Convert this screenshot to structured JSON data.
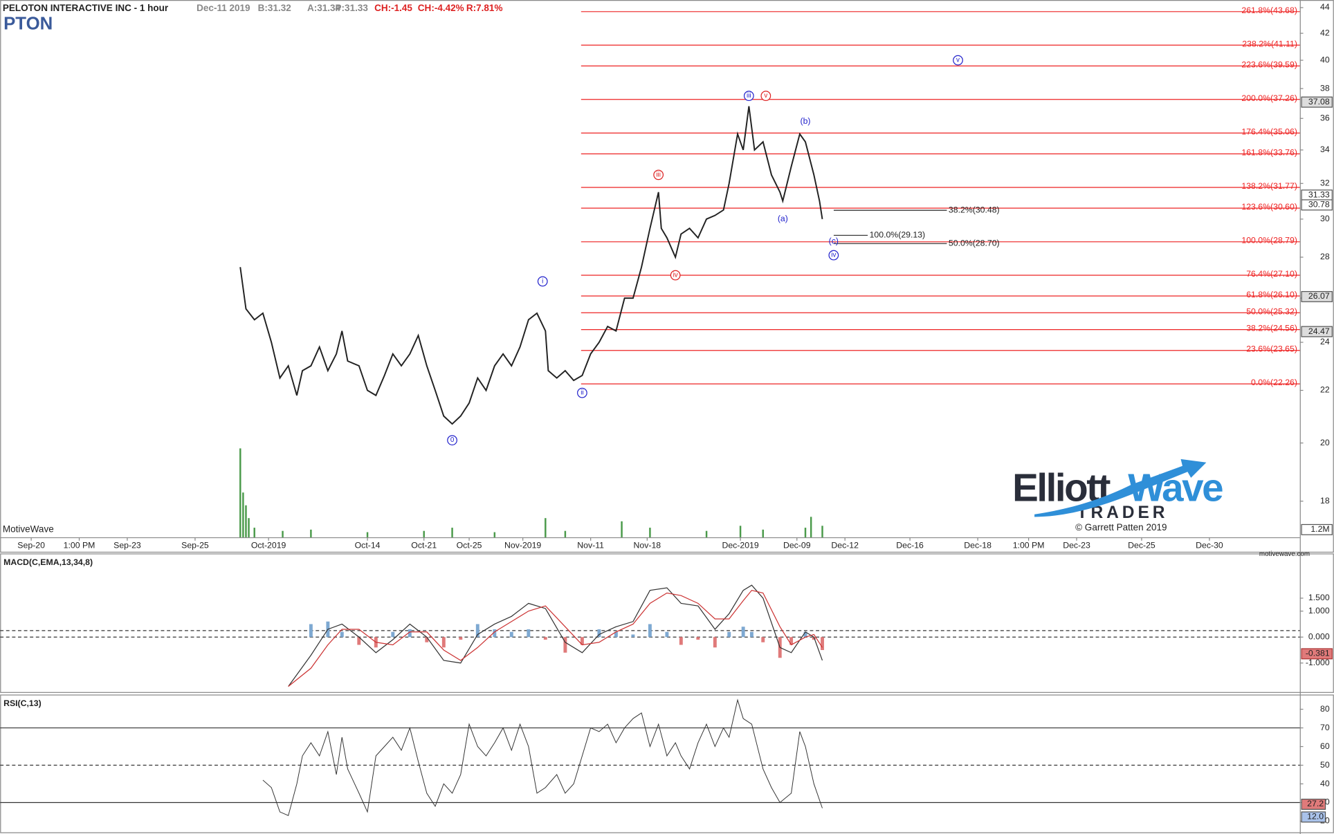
{
  "chart_data": [
    {
      "type": "ohlc-line",
      "title": "PELOTON INTERACTIVE INC - 1 hour",
      "symbol": "PTON",
      "quote": [
        "Dec-11 2019",
        "B:31.32",
        "A:31.34",
        "P:31.33",
        "CH:-1.45",
        "CH:-4.42%",
        "R:7.81%"
      ],
      "log": true,
      "xlim": [
        0,
        460
      ],
      "ylim": [
        16.86,
        44.61
      ],
      "yticks": [
        18,
        20,
        22,
        24,
        26,
        28,
        30,
        32,
        34,
        36,
        38,
        40,
        42,
        44
      ],
      "xticks": [
        {
          "value": 11,
          "label": "Sep-20"
        },
        {
          "value": 28,
          "label": "1:00 PM"
        },
        {
          "value": 45,
          "label": "Sep-23"
        },
        {
          "value": 69,
          "label": "Sep-25"
        },
        {
          "value": 95,
          "label": "Oct-2019"
        },
        {
          "value": 130,
          "label": "Oct-14"
        },
        {
          "value": 150,
          "label": "Oct-21"
        },
        {
          "value": 166,
          "label": "Oct-25"
        },
        {
          "value": 185,
          "label": "Nov-2019"
        },
        {
          "value": 209,
          "label": "Nov-11"
        },
        {
          "value": 229,
          "label": "Nov-18"
        },
        {
          "value": 262,
          "label": "Dec-2019"
        },
        {
          "value": 282,
          "label": "Dec-09"
        },
        {
          "value": 299,
          "label": "Dec-12"
        },
        {
          "value": 322,
          "label": "Dec-16"
        },
        {
          "value": 346,
          "label": "Dec-18"
        },
        {
          "value": 364,
          "label": "1:00 PM"
        },
        {
          "value": 381,
          "label": "Dec-23"
        },
        {
          "value": 404,
          "label": "Dec-25"
        },
        {
          "value": 428,
          "label": "Dec-30"
        }
      ],
      "color": "#222222",
      "x": [
        85,
        87,
        90,
        93,
        96,
        99,
        102,
        105,
        107,
        110,
        113,
        116,
        119,
        121,
        123,
        127,
        130,
        133,
        136,
        139,
        142,
        145,
        148,
        151,
        154,
        157,
        160,
        163,
        166,
        169,
        172,
        175,
        178,
        181,
        184,
        187,
        190,
        193,
        194,
        197,
        200,
        203,
        206,
        209,
        212,
        215,
        218,
        221,
        224,
        227,
        230,
        233,
        234,
        236,
        239,
        241,
        244,
        247,
        250,
        253,
        256,
        258,
        261,
        263,
        265,
        267,
        270,
        273,
        276,
        277,
        280,
        283,
        285,
        288,
        290,
        291
      ],
      "values": [
        27.5,
        25.5,
        25.0,
        25.3,
        24.0,
        22.5,
        23.0,
        21.8,
        22.8,
        23.0,
        23.8,
        22.8,
        23.5,
        24.5,
        23.2,
        23.0,
        22.0,
        21.8,
        22.6,
        23.5,
        23.0,
        23.5,
        24.3,
        23.0,
        22.0,
        21.0,
        20.7,
        21.0,
        21.5,
        22.5,
        22.0,
        23.0,
        23.5,
        23.0,
        23.8,
        25.0,
        25.3,
        24.5,
        22.8,
        22.5,
        22.8,
        22.4,
        22.6,
        23.5,
        24.0,
        24.7,
        24.5,
        26.0,
        26.0,
        27.5,
        29.5,
        31.5,
        29.5,
        29.0,
        28.0,
        29.2,
        29.5,
        29.0,
        30.0,
        30.2,
        30.5,
        32.0,
        35.0,
        34.0,
        36.8,
        34.0,
        34.5,
        32.5,
        31.5,
        31.0,
        33.0,
        35.0,
        34.5,
        32.5,
        31.0,
        30.0
      ],
      "volume": {
        "color": "#4a9a4a",
        "vlim": [
          0,
          84
        ],
        "marker": {
          "value": 1.2,
          "label": "1.2M"
        },
        "x": [
          85,
          86,
          87,
          88,
          90,
          100,
          110,
          130,
          150,
          160,
          175,
          193,
          200,
          220,
          230,
          250,
          262,
          270,
          285,
          287,
          291
        ],
        "values": [
          13.9,
          7,
          5,
          3,
          1.5,
          1.0,
          1.2,
          0.8,
          1.0,
          1.5,
          0.8,
          3.0,
          1.0,
          2.5,
          1.5,
          1.0,
          1.8,
          1.2,
          1.5,
          3.2,
          1.8
        ]
      },
      "fib_color": "#ee2222",
      "fib_levels": [
        {
          "label": "261.8%(43.68)",
          "value": 43.68
        },
        {
          "label": "238.2%(41.11)",
          "value": 41.11
        },
        {
          "label": "223.6%(39.59)",
          "value": 39.59
        },
        {
          "label": "200.0%(37.26)",
          "value": 37.26
        },
        {
          "label": "176.4%(35.06)",
          "value": 35.06
        },
        {
          "label": "161.8%(33.76)",
          "value": 33.76
        },
        {
          "label": "138.2%(31.77)",
          "value": 31.77
        },
        {
          "label": "123.6%(30.60)",
          "value": 30.6
        },
        {
          "label": "100.0%(28.79)",
          "value": 28.79
        },
        {
          "label": "76.4%(27.10)",
          "value": 27.1
        },
        {
          "label": "61.8%(26.10)",
          "value": 26.1
        },
        {
          "label": "50.0%(25.32)",
          "value": 25.32
        },
        {
          "label": "38.2%(24.56)",
          "value": 24.56
        },
        {
          "label": "23.6%(23.65)",
          "value": 23.65
        },
        {
          "label": "0.0%(22.26)",
          "value": 22.26
        }
      ],
      "projections": [
        {
          "label": "38.2%(30.48)",
          "value": 30.48
        },
        {
          "label": "100.0%(29.13)",
          "value": 29.13
        },
        {
          "label": "50.0%(28.70)",
          "value": 28.7
        }
      ],
      "waves": [
        {
          "text": "0",
          "x": 160,
          "y": 20.1,
          "color": "#2222cc",
          "circled": true
        },
        {
          "text": "i",
          "x": 192,
          "y": 26.8,
          "color": "#2222cc",
          "circled": true
        },
        {
          "text": "ii",
          "x": 206,
          "y": 21.9,
          "color": "#2222cc",
          "circled": true
        },
        {
          "text": "iii",
          "x": 233,
          "y": 32.5,
          "color": "#dd2222",
          "circled": true
        },
        {
          "text": "iv",
          "x": 239,
          "y": 27.1,
          "color": "#dd2222",
          "circled": true
        },
        {
          "text": "v",
          "x": 271,
          "y": 37.5,
          "color": "#dd2222",
          "circled": true
        },
        {
          "text": "iii",
          "x": 265,
          "y": 37.5,
          "color": "#2222cc",
          "circled": true
        },
        {
          "text": "(a)",
          "x": 277,
          "y": 30.0,
          "color": "#2222cc",
          "circled": false
        },
        {
          "text": "(b)",
          "x": 285,
          "y": 35.8,
          "color": "#2222cc",
          "circled": false
        },
        {
          "text": "(c)",
          "x": 295,
          "y": 28.8,
          "color": "#2222cc",
          "circled": false
        },
        {
          "text": "iv",
          "x": 295,
          "y": 28.1,
          "color": "#2222cc",
          "circled": true
        },
        {
          "text": "v",
          "x": 339,
          "y": 40.0,
          "color": "#2222cc",
          "circled": true
        }
      ],
      "price_markers": [
        37.08,
        31.33,
        30.78,
        26.07,
        24.47
      ],
      "watermark": "MotiveWave",
      "logo": {
        "word1": "Elliott",
        "word2": "Wave",
        "word3": "TRADER"
      },
      "copyright": "© Garrett Patten 2019"
    },
    {
      "type": "macd",
      "title": "MACD(C,EMA,13,34,8)",
      "xlim": [
        0,
        460
      ],
      "ylim": [
        -2.15,
        3.19
      ],
      "yticks": [
        {
          "value": 1.5,
          "label": "1.500"
        },
        {
          "value": 1.0,
          "label": "1.000"
        },
        {
          "value": 0,
          "label": "0.000"
        },
        {
          "value": -1.0,
          "label": "-1.000"
        }
      ],
      "levels": [
        0.25,
        0
      ],
      "x": [
        102,
        110,
        116,
        121,
        127,
        133,
        139,
        145,
        151,
        157,
        163,
        169,
        175,
        181,
        187,
        193,
        200,
        206,
        212,
        218,
        224,
        230,
        236,
        241,
        247,
        253,
        258,
        263,
        266,
        270,
        276,
        280,
        285,
        288,
        291
      ],
      "macd": [
        -1.9,
        -0.7,
        0.3,
        0.5,
        0.0,
        -0.6,
        -0.1,
        0.5,
        0.0,
        -0.9,
        -1.0,
        0.1,
        0.5,
        0.8,
        1.3,
        1.1,
        -0.2,
        -0.6,
        0.1,
        0.4,
        0.6,
        1.8,
        1.9,
        1.3,
        1.2,
        0.3,
        0.9,
        1.8,
        2.0,
        1.5,
        -0.4,
        -0.6,
        0.2,
        0.0,
        -0.9
      ],
      "signal": [
        -1.9,
        -1.2,
        -0.3,
        0.3,
        0.3,
        -0.2,
        -0.3,
        0.2,
        0.2,
        -0.5,
        -0.9,
        -0.4,
        0.2,
        0.6,
        1.0,
        1.2,
        0.4,
        -0.3,
        -0.2,
        0.2,
        0.5,
        1.3,
        1.7,
        1.6,
        1.3,
        0.7,
        0.7,
        1.4,
        1.8,
        1.7,
        0.4,
        -0.3,
        0.0,
        0.1,
        -0.4
      ],
      "histogram": [
        0,
        0.5,
        0.6,
        0.2,
        -0.3,
        -0.4,
        0.2,
        0.3,
        -0.2,
        -0.4,
        -0.1,
        0.5,
        0.3,
        0.2,
        0.3,
        -0.1,
        -0.6,
        -0.3,
        0.3,
        0.2,
        0.1,
        0.5,
        0.2,
        -0.3,
        -0.1,
        -0.4,
        0.2,
        0.4,
        0.2,
        -0.2,
        -0.8,
        -0.3,
        0.2,
        -0.1,
        -0.5
      ],
      "colors": {
        "macd": "#333333",
        "signal": "#cc3333",
        "up": "#7ea9d2",
        "down": "#e07a7a"
      },
      "current": -0.381
    },
    {
      "type": "rsi",
      "title": "RSI(C,13)",
      "xlim": [
        0,
        460
      ],
      "ylim": [
        14.5,
        87.4
      ],
      "yticks": [
        20,
        30,
        40,
        50,
        60,
        70,
        80
      ],
      "levels": [
        70,
        50,
        30
      ],
      "color": "#333333",
      "x": [
        93,
        96,
        99,
        102,
        105,
        107,
        110,
        113,
        116,
        119,
        121,
        123,
        127,
        130,
        133,
        136,
        139,
        142,
        145,
        148,
        151,
        154,
        157,
        160,
        163,
        166,
        169,
        172,
        175,
        178,
        181,
        184,
        187,
        190,
        193,
        197,
        200,
        203,
        206,
        209,
        212,
        215,
        218,
        221,
        224,
        227,
        230,
        233,
        236,
        239,
        241,
        244,
        247,
        250,
        253,
        256,
        258,
        261,
        263,
        266,
        270,
        273,
        276,
        280,
        283,
        285,
        288,
        291
      ],
      "values": [
        42,
        38,
        25,
        23,
        40,
        55,
        62,
        55,
        68,
        45,
        65,
        48,
        35,
        25,
        55,
        60,
        65,
        58,
        70,
        52,
        35,
        28,
        40,
        35,
        45,
        72,
        60,
        55,
        62,
        70,
        58,
        72,
        60,
        35,
        38,
        45,
        35,
        40,
        55,
        70,
        68,
        72,
        62,
        70,
        75,
        78,
        60,
        72,
        55,
        62,
        55,
        48,
        62,
        72,
        60,
        70,
        65,
        85,
        75,
        72,
        48,
        38,
        30,
        35,
        68,
        60,
        40,
        27
      ],
      "current": [
        27.2,
        {
          "value": 12,
          "label": "12.0"
        }
      ],
      "footer": "motivewave.com"
    }
  ]
}
